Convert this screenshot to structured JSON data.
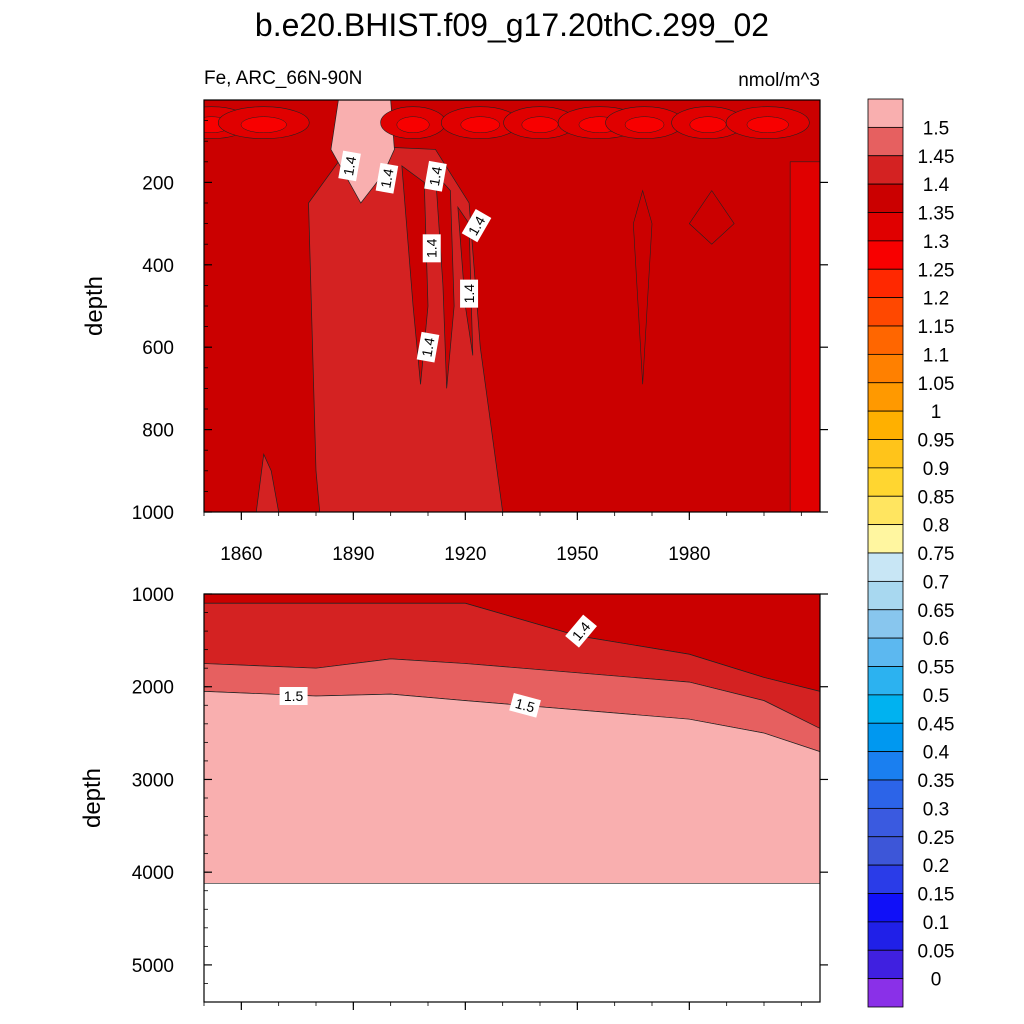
{
  "title": "b.e20.BHIST.f09_g17.20thC.299_02",
  "subtitle_left": "Fe, ARC_66N-90N",
  "subtitle_right": "nmol/m^3",
  "chart_data": [
    {
      "type": "heatmap",
      "panel": "upper",
      "ylabel": "depth",
      "xlabel": "",
      "xlim": [
        1850,
        2015
      ],
      "ylim": [
        1000,
        0
      ],
      "x_ticks": [
        1860,
        1890,
        1920,
        1950,
        1980
      ],
      "y_ticks": [
        200,
        400,
        600,
        800,
        1000
      ],
      "contour_labels": [
        "1.4",
        "1.4",
        "1.4",
        "1.4",
        "1.4",
        "1.4",
        "1.4"
      ],
      "levels": {
        "near_surface_patches": 1.25,
        "background": 1.375,
        "low_band_1880_1930": 1.425,
        "surface_1885_1900": 1.5
      }
    },
    {
      "type": "heatmap",
      "panel": "lower",
      "ylabel": "depth",
      "xlabel": "",
      "xlim": [
        1850,
        2015
      ],
      "ylim": [
        5400,
        1000
      ],
      "y_ticks": [
        1000,
        2000,
        3000,
        4000,
        5000
      ],
      "contour_labels": [
        "1.4",
        "1.5",
        "1.5"
      ],
      "bottom_of_data": 4120,
      "boundaries": {
        "x": [
          1850,
          1880,
          1900,
          1920,
          1950,
          1980,
          2000,
          2015
        ],
        "depth_1_40": [
          1100,
          1100,
          1100,
          1100,
          1450,
          1650,
          1900,
          2050
        ],
        "depth_1_45": [
          1750,
          1800,
          1700,
          1750,
          1850,
          1950,
          2150,
          2450
        ],
        "depth_1_50": [
          2050,
          2100,
          2080,
          2150,
          2250,
          2350,
          2500,
          2700
        ]
      }
    }
  ],
  "colorbar": {
    "labels": [
      "1.5",
      "1.45",
      "1.4",
      "1.35",
      "1.3",
      "1.25",
      "1.2",
      "1.15",
      "1.1",
      "1.05",
      "1",
      "0.95",
      "0.9",
      "0.85",
      "0.8",
      "0.75",
      "0.7",
      "0.65",
      "0.6",
      "0.55",
      "0.5",
      "0.45",
      "0.4",
      "0.35",
      "0.3",
      "0.25",
      "0.2",
      "0.15",
      "0.1",
      "0.05",
      "0"
    ],
    "colors": [
      "#F9AFAF",
      "#E66060",
      "#D42222",
      "#CB0000",
      "#E00000",
      "#F80000",
      "#FF2800",
      "#FF4800",
      "#FF6600",
      "#FF8000",
      "#FF9900",
      "#FFB000",
      "#FFC41A",
      "#FFD630",
      "#FFE560",
      "#FFF6A0",
      "#C8E6F5",
      "#A8D8F0",
      "#88C6EE",
      "#5CB8F0",
      "#2CB2F0",
      "#00B2F0",
      "#0098F0",
      "#1A7FF0",
      "#2C64E8",
      "#3A5AE0",
      "#3D56D8",
      "#2A3CE8",
      "#1010F8",
      "#2020E8",
      "#4020E0",
      "#8A30E8"
    ]
  }
}
